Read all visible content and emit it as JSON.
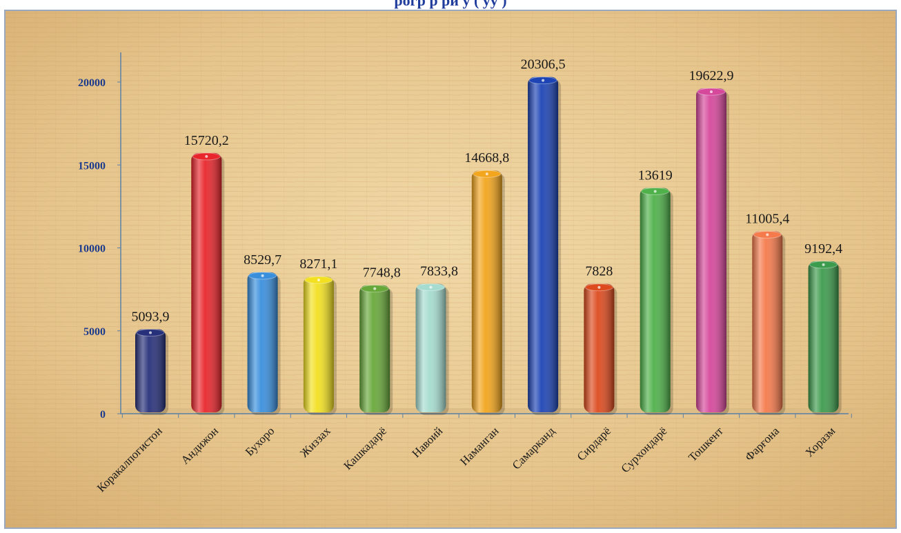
{
  "chart_data": {
    "type": "bar",
    "title_partial": "рогр р ри     у   (  уу )",
    "categories": [
      "Коракалпогистон",
      "Андижон",
      "Бухоро",
      "Жиззах",
      "Кашкадарё",
      "Навоий",
      "Наманган",
      "Самарканд",
      "Сирдарё",
      "Сурхондарё",
      "Тошкент",
      "Фарғона",
      "Хоразм"
    ],
    "values": [
      5093.9,
      15720.2,
      8529.7,
      8271.1,
      7748.8,
      7833.8,
      14668.8,
      20306.5,
      7828,
      13619,
      19622.9,
      11005.4,
      9192.4
    ],
    "data_labels": [
      "5093,9",
      "15720,2",
      "8529,7",
      "8271,1",
      "7748,8",
      "7833,8",
      "14668,8",
      "20306,5",
      "7828",
      "13619",
      "19622,9",
      "11005,4",
      "9192,4"
    ],
    "colors": [
      "#27307a",
      "#e8262c",
      "#3a8fdd",
      "#f2e021",
      "#68a83a",
      "#a6dccf",
      "#f2a51d",
      "#1d44b4",
      "#dd4a1e",
      "#4fb14a",
      "#d6489c",
      "#f57a4c",
      "#3d9b4d"
    ],
    "yticks": [
      0,
      5000,
      10000,
      15000,
      20000
    ],
    "ylim": [
      0,
      21500
    ],
    "xlabel": "",
    "ylabel": "",
    "grid": false,
    "legend": "none",
    "background": "papyrus texture",
    "bar_style": "3d cylinder"
  }
}
